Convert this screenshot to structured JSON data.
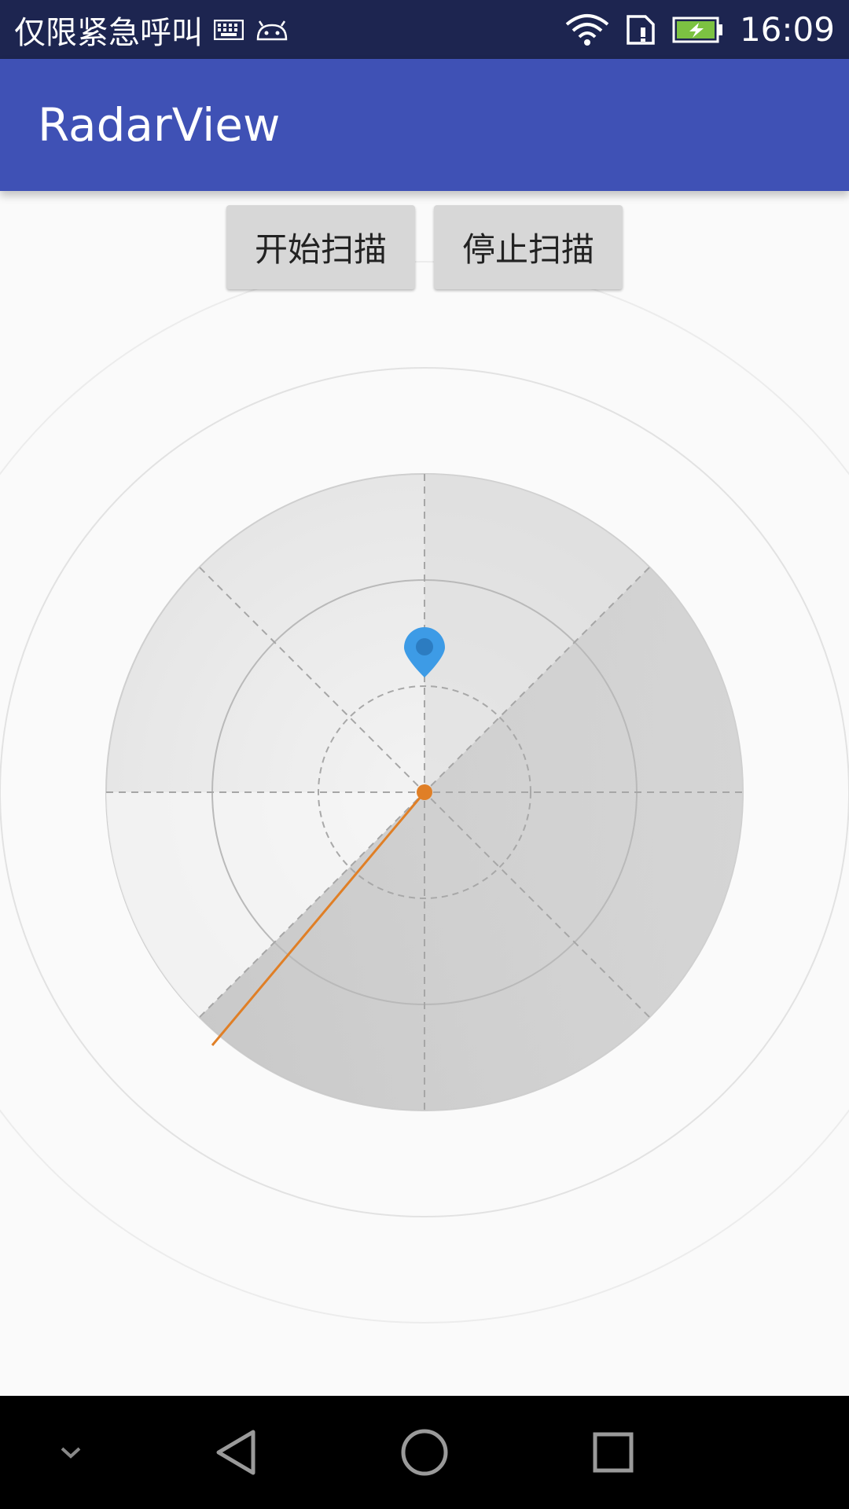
{
  "status_bar": {
    "carrier_text": "仅限紧急呼叫",
    "time": "16:09",
    "icons": [
      "keyboard-icon",
      "android-icon",
      "wifi-icon",
      "sim-icon",
      "battery-charging-icon"
    ],
    "battery_color": "#7cc242"
  },
  "app_bar": {
    "title": "RadarView",
    "color": "#3f51b5"
  },
  "buttons": {
    "start_label": "开始扫描",
    "stop_label": "停止扫描"
  },
  "radar": {
    "sweep_line_color": "#e07f26",
    "marker_color": "#3d9be6",
    "center_dot_color": "#e07f26"
  },
  "nav_bar": {
    "icons": [
      "chevron-down-icon",
      "back-icon",
      "home-icon",
      "recents-icon"
    ]
  }
}
